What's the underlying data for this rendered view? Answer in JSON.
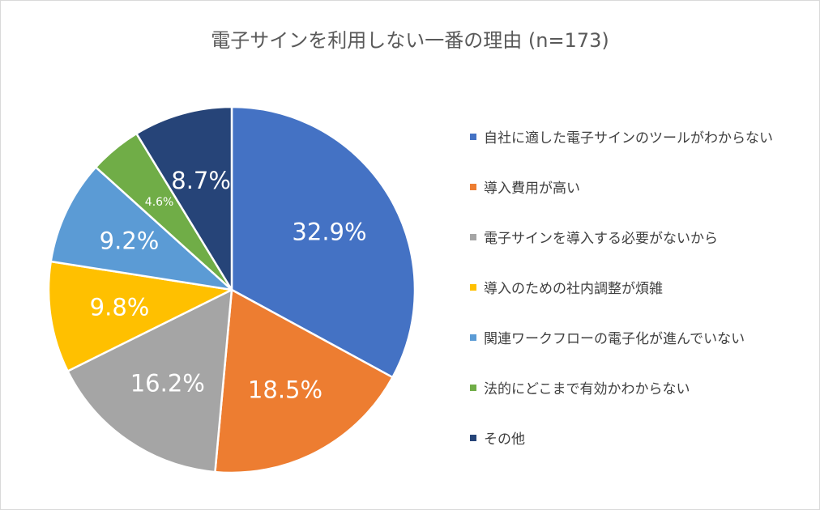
{
  "chart_data": {
    "type": "pie",
    "title": "電子サインを利用しない一番の理由 (n=173)",
    "legend_position": "right",
    "slices": [
      {
        "label": "自社に適した電子サインのツールがわからない",
        "value": 32.9,
        "display": "32.9%",
        "color": "#4472C4"
      },
      {
        "label": "導入費用が高い",
        "value": 18.5,
        "display": "18.5%",
        "color": "#ED7D31"
      },
      {
        "label": "電子サインを導入する必要がないから",
        "value": 16.2,
        "display": "16.2%",
        "color": "#A5A5A5"
      },
      {
        "label": "導入のための社内調整が煩雑",
        "value": 9.8,
        "display": "9.8%",
        "color": "#FFC000"
      },
      {
        "label": "関連ワークフローの電子化が進んでいない",
        "value": 9.2,
        "display": "9.2%",
        "color": "#5B9BD5"
      },
      {
        "label": "法的にどこまで有効かわからない",
        "value": 4.6,
        "display": "4.6%",
        "color": "#70AD47"
      },
      {
        "label": "その他",
        "value": 8.7,
        "display": "8.7%",
        "color": "#264478"
      }
    ]
  }
}
